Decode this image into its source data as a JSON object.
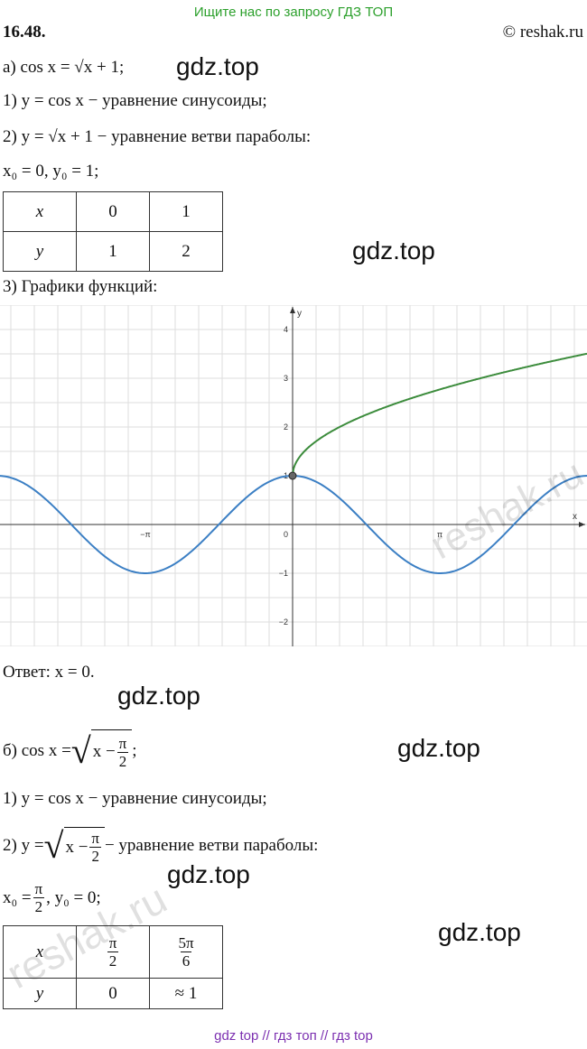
{
  "header": {
    "search_hint": "Ищите нас по запросу ГДЗ ТОП",
    "problem_number": "16.48.",
    "copyright": "© reshak.ru"
  },
  "part_a": {
    "equation": "а) cos x = √x + 1;",
    "step1": "1) y = cos x − уравнение синусоиды;",
    "step2": "2) y = √x + 1 − уравнение ветви параболы:",
    "vertex": "x₀ = 0,  y₀ = 1;",
    "table": {
      "rows": [
        [
          "x",
          "0",
          "1"
        ],
        [
          "y",
          "1",
          "2"
        ]
      ]
    },
    "step3": "3) Графики функций:",
    "graph": {
      "y_axis": "y",
      "x_axis": "x",
      "origin": "0",
      "y_ticks": [
        "4",
        "3",
        "2",
        "1",
        "−1",
        "−2"
      ],
      "x_ticks": [
        "−π",
        "π"
      ]
    },
    "answer": "Ответ:  x = 0."
  },
  "part_b": {
    "equation": {
      "prefix": "б) cos x =",
      "radicand": "x −",
      "fraction": {
        "num": "π",
        "den": "2"
      },
      "suffix": ";"
    },
    "step1": "1) y = cos x − уравнение синусоиды;",
    "step2": {
      "prefix": "2) y =",
      "radicand": "x −",
      "fraction": {
        "num": "π",
        "den": "2"
      },
      "suffix": "− уравнение ветви параболы:"
    },
    "vertex": {
      "prefix": "x₀ =",
      "fraction": {
        "num": "π",
        "den": "2"
      },
      "suffix": ",  y₀ = 0;"
    },
    "table": {
      "rows": [
        [
          "x",
          {
            "num": "π",
            "den": "2"
          },
          {
            "num": "5π",
            "den": "6"
          }
        ],
        [
          "y",
          "0",
          "≈ 1"
        ]
      ]
    }
  },
  "watermarks": {
    "gdz": "gdz.top",
    "reshak": "reshak.ru"
  },
  "footer": "gdz top // гдз топ // гдз top"
}
